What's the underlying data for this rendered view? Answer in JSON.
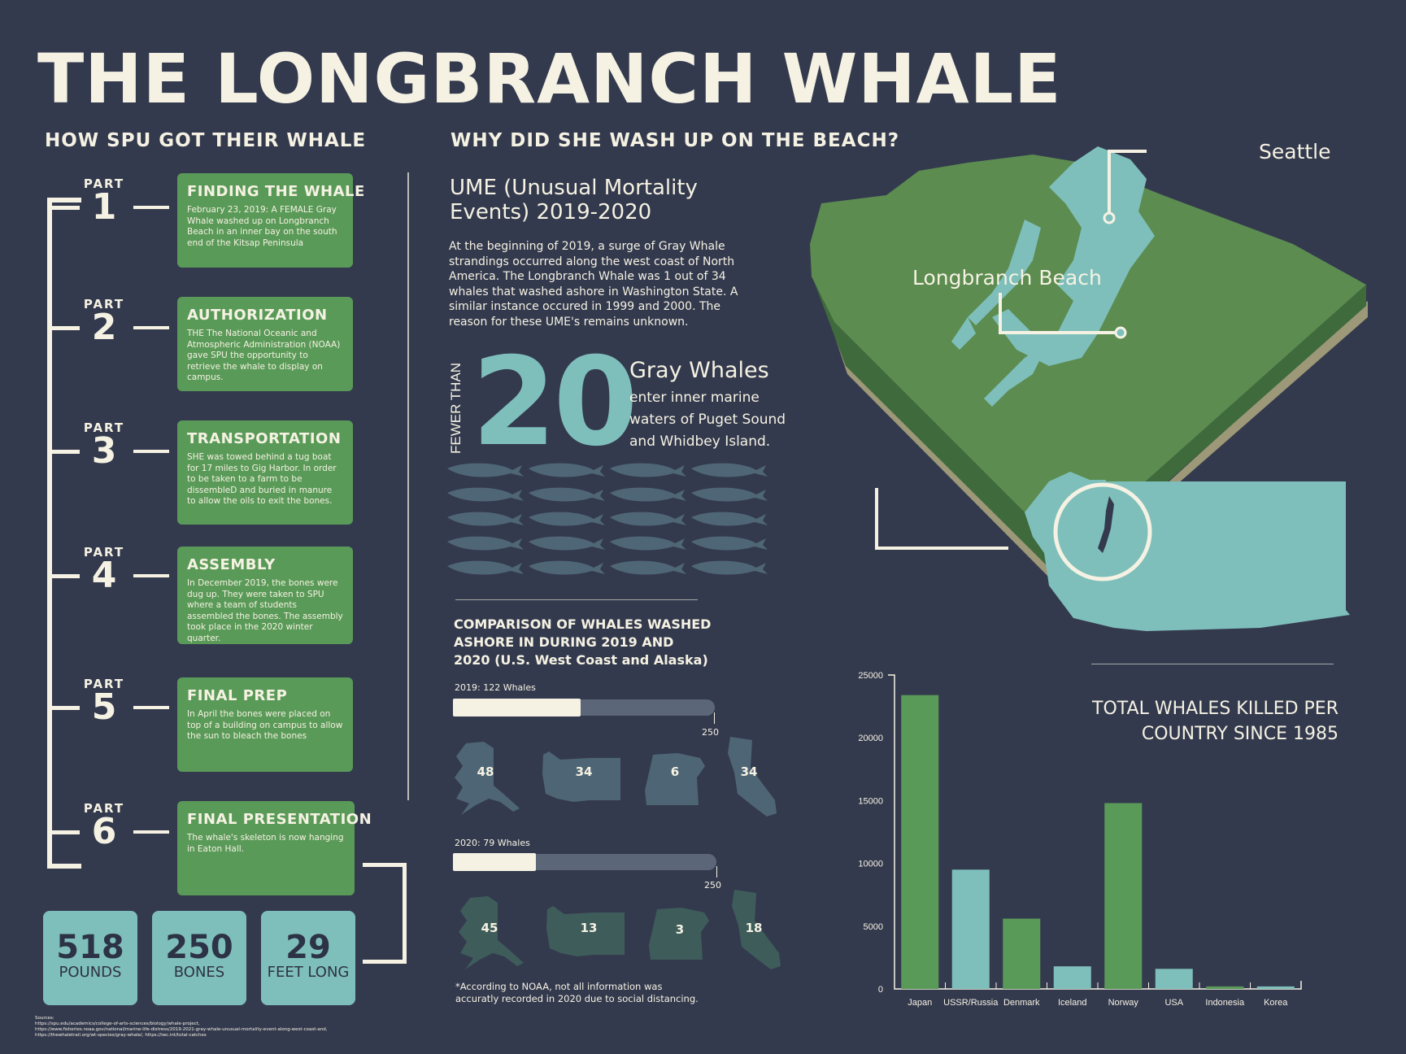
{
  "title": "THE LONGBRANCH WHALE",
  "left_heading": "HOW SPU GOT THEIR WHALE",
  "mid_heading": "WHY DID SHE WASH UP ON THE BEACH?",
  "part_word": "PART",
  "parts": [
    {
      "num": "1",
      "title": "FINDING THE WHALE",
      "text": "February 23, 2019: A FEMALE Gray Whale washed up on Longbranch Beach in an inner bay on the south end of the Kitsap Peninsula"
    },
    {
      "num": "2",
      "title": "AUTHORIZATION",
      "text": "THE The National Oceanic and Atmospheric Administration (NOAA) gave SPU the opportunity to retrieve the whale to display on campus."
    },
    {
      "num": "3",
      "title": "TRANSPORTATION",
      "text": "SHE was towed behind a tug boat for 17 miles to Gig Harbor. In order to be taken to a farm to be dissembleD and buried in manure to allow the oils to exit the bones."
    },
    {
      "num": "4",
      "title": "ASSEMBLY",
      "text": "In December 2019, the bones were dug up. They were taken to SPU where a team of students assembled the bones. The assembly took place in the 2020 winter quarter."
    },
    {
      "num": "5",
      "title": "FINAL PREP",
      "text": "In April the bones were placed on top of a building on campus to allow the sun to bleach the bones"
    },
    {
      "num": "6",
      "title": "FINAL PRESENTATION",
      "text": "The whale's skeleton is now hanging in Eaton Hall."
    }
  ],
  "stats": [
    {
      "value": "518",
      "unit": "POUNDS"
    },
    {
      "value": "250",
      "unit": "BONES"
    },
    {
      "value": "29",
      "unit": "FEET LONG"
    }
  ],
  "ume": {
    "title": "UME (Unusual Mortality Events) 2019-2020",
    "body": "At the beginning of 2019, a surge of Gray Whale strandings occurred along the west coast of North America. The Longbranch Whale was 1 out of 34 whales that washed ashore in Washington State. A similar instance occured in 1999 and 2000. The reason for these UME's remains unknown."
  },
  "fewer": {
    "prefix": "FEWER THAN",
    "number": "20",
    "title": "Gray Whales",
    "body": "enter inner marine waters of Puget Sound and Whidbey Island.",
    "whale_icon_count": 20
  },
  "comparison": {
    "title": "COMPARISON  OF WHALES WASHED ASHORE IN DURING 2019 AND 2020 (U.S. West Coast and Alaska)",
    "years": [
      {
        "label": "2019: 122 Whales",
        "value": 122,
        "max": 250,
        "max_label": "250",
        "states": [
          {
            "state": "Alaska",
            "count": "48"
          },
          {
            "state": "Washington",
            "count": "34"
          },
          {
            "state": "Oregon",
            "count": "6"
          },
          {
            "state": "California",
            "count": "34"
          }
        ]
      },
      {
        "label": "2020: 79 Whales",
        "value": 79,
        "max": 250,
        "max_label": "250",
        "states": [
          {
            "state": "Alaska",
            "count": "45"
          },
          {
            "state": "Washington",
            "count": "13"
          },
          {
            "state": "Oregon",
            "count": "3"
          },
          {
            "state": "California",
            "count": "18"
          }
        ]
      }
    ],
    "footnote": "*According to NOAA, not all information was accuratly recorded in 2020 due to social distancing."
  },
  "map": {
    "seattle_label": "Seattle",
    "beach_label": "Longbranch Beach"
  },
  "colors": {
    "background": "#343a4e",
    "green": "#5a9a58",
    "teal": "#7fbfbb",
    "cream": "#f5f2e3"
  },
  "sources": "Sources:\nhttps://spu.edu/academics/college-of-arts-sciences/biology/whale-project,\nhttps://www.fisheries.noaa.gov/national/marine-life-distress/2019-2021-gray-whale-unusual-mortality-event-along-west-coast-and,\nhttps://thewhaletrail.org/wt-species/gray-whale/, https://iwc.int/total-catches",
  "chart_data": {
    "type": "bar",
    "title": "TOTAL WHALES KILLED PER COUNTRY SINCE 1985",
    "categories": [
      "Japan",
      "USSR/Russia",
      "Denmark",
      "Iceland",
      "Norway",
      "USA",
      "Indonesia",
      "Korea"
    ],
    "values": [
      23400,
      9500,
      5600,
      1800,
      14800,
      1600,
      200,
      200
    ],
    "bar_colors": [
      "#5a9a58",
      "#7fbfbb",
      "#5a9a58",
      "#7fbfbb",
      "#5a9a58",
      "#7fbfbb",
      "#5a9a58",
      "#7fbfbb"
    ],
    "yticks": [
      "0",
      "5000",
      "10000",
      "15000",
      "20000",
      "25000"
    ],
    "ylim": [
      0,
      25000
    ],
    "grid": false
  }
}
